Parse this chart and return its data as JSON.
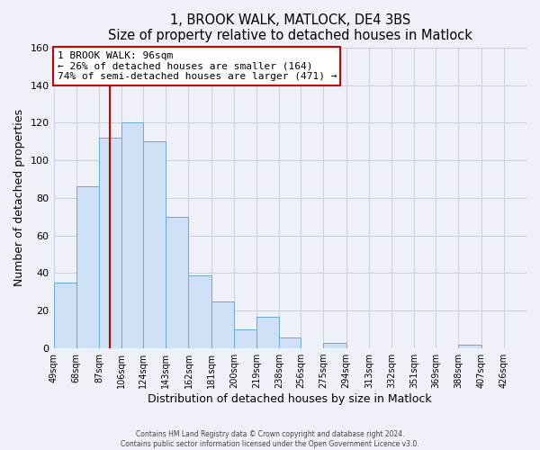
{
  "title": "1, BROOK WALK, MATLOCK, DE4 3BS",
  "subtitle": "Size of property relative to detached houses in Matlock",
  "xlabel": "Distribution of detached houses by size in Matlock",
  "ylabel": "Number of detached properties",
  "bin_labels": [
    "49sqm",
    "68sqm",
    "87sqm",
    "106sqm",
    "124sqm",
    "143sqm",
    "162sqm",
    "181sqm",
    "200sqm",
    "219sqm",
    "238sqm",
    "256sqm",
    "275sqm",
    "294sqm",
    "313sqm",
    "332sqm",
    "351sqm",
    "369sqm",
    "388sqm",
    "407sqm",
    "426sqm"
  ],
  "bin_edges": [
    49,
    68,
    87,
    106,
    124,
    143,
    162,
    181,
    200,
    219,
    238,
    256,
    275,
    294,
    313,
    332,
    351,
    369,
    388,
    407,
    426
  ],
  "bar_heights": [
    35,
    86,
    112,
    120,
    110,
    70,
    39,
    25,
    10,
    17,
    6,
    0,
    3,
    0,
    0,
    0,
    0,
    0,
    2,
    0,
    0
  ],
  "bar_color": "#cde0f5",
  "bar_edge_color": "#6aaad4",
  "property_value": 96,
  "vline_color": "#cc0000",
  "annotation_line1": "1 BROOK WALK: 96sqm",
  "annotation_line2": "← 26% of detached houses are smaller (164)",
  "annotation_line3": "74% of semi-detached houses are larger (471) →",
  "annotation_box_edge_color": "#cc0000",
  "ylim": [
    0,
    160
  ],
  "yticks": [
    0,
    20,
    40,
    60,
    80,
    100,
    120,
    140,
    160
  ],
  "grid_color": "#c8d0dc",
  "background_color": "#eef2f8",
  "footer_line1": "Contains HM Land Registry data © Crown copyright and database right 2024.",
  "footer_line2": "Contains public sector information licensed under the Open Government Licence v3.0."
}
